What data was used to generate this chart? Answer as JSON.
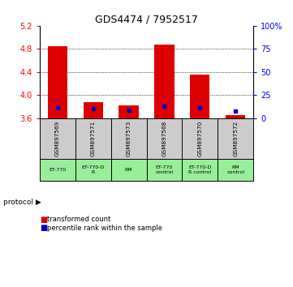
{
  "title": "GDS4474 / 7952517",
  "samples": [
    "GSM897569",
    "GSM897571",
    "GSM897573",
    "GSM897568",
    "GSM897570",
    "GSM897572"
  ],
  "protocols": [
    "ET-770",
    "ET-770-D\nR",
    "RM",
    "ET-770\ncontrol",
    "ET-770-D\nR control",
    "RM\ncontrol"
  ],
  "bar_bottoms": [
    3.6,
    3.6,
    3.6,
    3.6,
    3.6,
    3.6
  ],
  "bar_tops": [
    4.84,
    3.88,
    3.82,
    4.87,
    4.35,
    3.65
  ],
  "percentile_values": [
    3.78,
    3.76,
    3.74,
    3.8,
    3.78,
    3.72
  ],
  "ylim_left": [
    3.6,
    5.2
  ],
  "ylim_right": [
    0,
    100
  ],
  "yticks_left": [
    3.6,
    4.0,
    4.4,
    4.8,
    5.2
  ],
  "yticks_right": [
    0,
    25,
    50,
    75,
    100
  ],
  "bar_color": "#dd0000",
  "dot_color": "#0000cc",
  "bg_color_samples": "#cccccc",
  "bg_color_protocols": "#99ee99",
  "legend_red": "transformed count",
  "legend_blue": "percentile rank within the sample",
  "grid_dotted_at": [
    4.0,
    4.4,
    4.8
  ]
}
